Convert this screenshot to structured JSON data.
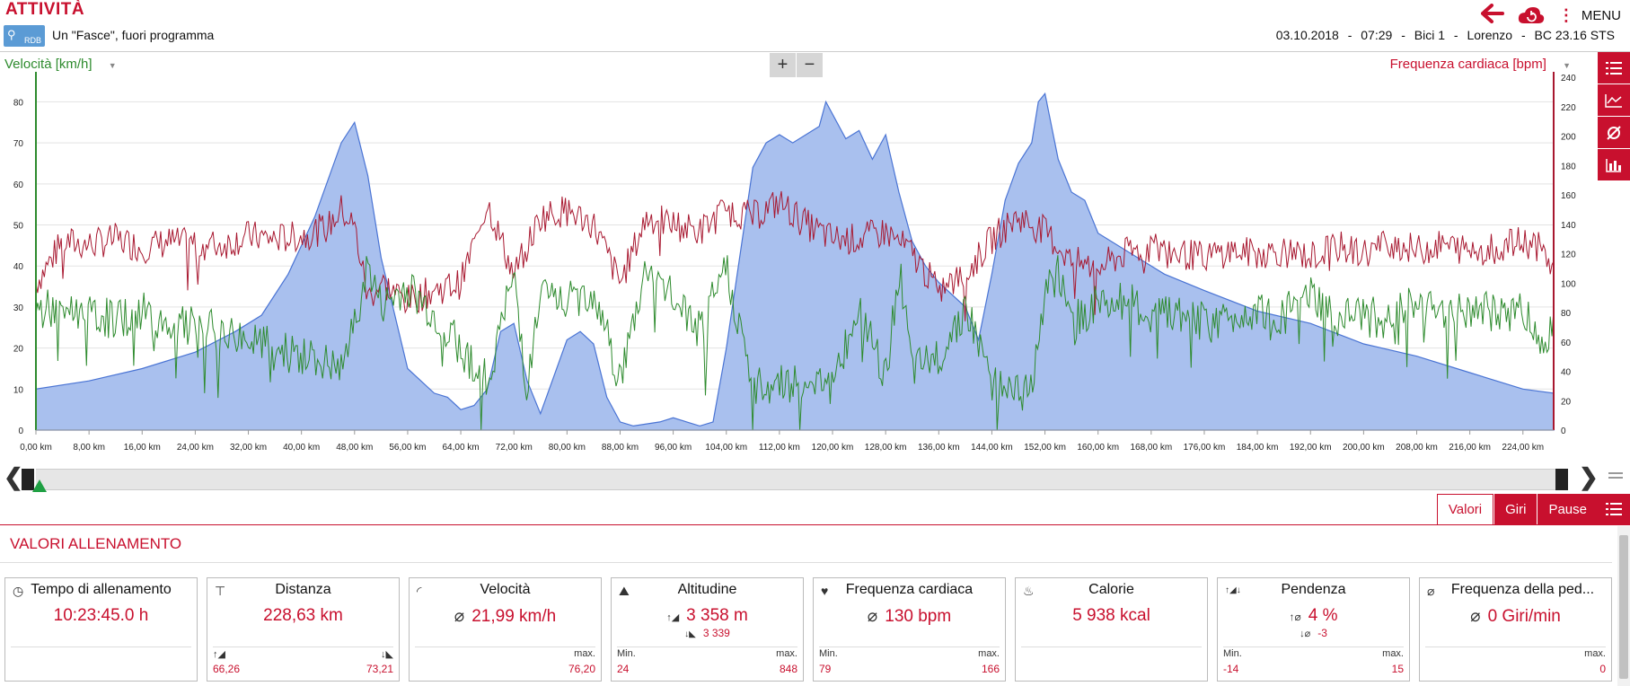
{
  "header": {
    "title": "ATTIVITÀ",
    "logo_text": "RDB",
    "activity_name": "Un \"Fasce\", fuori programma",
    "date": "03.10.2018",
    "time": "07:29",
    "bike": "Bici 1",
    "user": "Lorenzo",
    "device": "BC 23.16 STS",
    "sep": "-",
    "menu_label": "MENU"
  },
  "chart_header": {
    "left_axis_label": "Velocità [km/h]",
    "right_axis_label": "Frequenza cardiaca [bpm]",
    "zoom_in": "+",
    "zoom_out": "−"
  },
  "colors": {
    "accent": "#c8102e",
    "speed": "#2e8b2e",
    "heart_rate": "#a81830",
    "altitude_fill": "#a9c0ee",
    "altitude_line": "#4a74d4"
  },
  "chart_data": {
    "type": "area",
    "x_label_unit": "km",
    "x_ticks": [
      "0,00 km",
      "8,00 km",
      "16,00 km",
      "24,00 km",
      "32,00 km",
      "40,00 km",
      "48,00 km",
      "56,00 km",
      "64,00 km",
      "72,00 km",
      "80,00 km",
      "88,00 km",
      "96,00 km",
      "104,00 km",
      "112,00 km",
      "120,00 km",
      "128,00 km",
      "136,00 km",
      "144,00 km",
      "152,00 km",
      "160,00 km",
      "168,00 km",
      "176,00 km",
      "184,00 km",
      "192,00 km",
      "200,00 km",
      "208,00 km",
      "216,00 km",
      "224,00 km"
    ],
    "y_left_ticks": [
      "0",
      "10",
      "20",
      "30",
      "40",
      "50",
      "60",
      "70",
      "80"
    ],
    "y_right_ticks": [
      "0",
      "20",
      "40",
      "60",
      "80",
      "100",
      "120",
      "140",
      "160",
      "180",
      "200",
      "220",
      "240"
    ],
    "xlim": [
      0,
      228.63
    ],
    "ylim_left": [
      0,
      86
    ],
    "ylim_right": [
      0,
      240
    ],
    "grid": true,
    "series": [
      {
        "name": "Altitudine",
        "axis": "left",
        "type": "area",
        "x": [
          0,
          8,
          16,
          24,
          30,
          34,
          38,
          42,
          46,
          48,
          50,
          52,
          56,
          60,
          62,
          64,
          66,
          68,
          70,
          72,
          74,
          76,
          80,
          82,
          84,
          86,
          88,
          90,
          94,
          96,
          100,
          102,
          104,
          108,
          110,
          112,
          114,
          118,
          119,
          122,
          124,
          126,
          128,
          130,
          132,
          134,
          136,
          140,
          142,
          144,
          146,
          148,
          150,
          151,
          152,
          154,
          156,
          158,
          160,
          166,
          170,
          176,
          184,
          192,
          200,
          208,
          216,
          224,
          228.63
        ],
        "y": [
          10,
          12,
          15,
          19,
          24,
          28,
          38,
          52,
          70,
          75,
          62,
          42,
          15,
          9,
          8,
          5,
          6,
          10,
          24,
          26,
          12,
          4,
          22,
          24,
          21,
          8,
          2,
          1,
          2,
          3,
          1,
          2,
          20,
          64,
          70,
          72,
          70,
          74,
          80,
          71,
          73,
          66,
          72,
          58,
          46,
          40,
          36,
          30,
          22,
          38,
          56,
          65,
          70,
          80,
          82,
          66,
          58,
          56,
          48,
          42,
          38,
          34,
          29,
          26,
          21,
          18,
          14,
          10,
          9
        ]
      },
      {
        "name": "Velocità",
        "axis": "left",
        "type": "line",
        "x": [
          0,
          4,
          8,
          12,
          16,
          20,
          24,
          28,
          32,
          36,
          40,
          44,
          46,
          48,
          50,
          52,
          56,
          60,
          64,
          68,
          72,
          74,
          76,
          80,
          84,
          88,
          92,
          96,
          100,
          104,
          108,
          112,
          116,
          118,
          120,
          124,
          128,
          130,
          132,
          136,
          140,
          144,
          148,
          150,
          152,
          154,
          156,
          160,
          164,
          168,
          172,
          176,
          180,
          184,
          188,
          192,
          196,
          200,
          204,
          208,
          212,
          216,
          220,
          224,
          226,
          228.63
        ],
        "y": [
          29,
          30,
          28,
          27,
          29,
          26,
          25,
          24,
          22,
          20,
          18,
          16,
          14,
          26,
          40,
          30,
          35,
          28,
          20,
          12,
          38,
          10,
          33,
          31,
          34,
          12,
          40,
          32,
          24,
          40,
          10,
          12,
          11,
          14,
          10,
          30,
          12,
          40,
          14,
          18,
          30,
          12,
          10,
          11,
          33,
          38,
          26,
          31,
          32,
          27,
          29,
          26,
          27,
          30,
          28,
          33,
          27,
          28,
          27,
          31,
          28,
          30,
          28,
          30,
          22,
          25
        ]
      },
      {
        "name": "Frequenza cardiaca",
        "axis": "right",
        "type": "line",
        "x": [
          0,
          4,
          8,
          12,
          16,
          20,
          24,
          28,
          32,
          36,
          40,
          44,
          46,
          48,
          50,
          52,
          56,
          60,
          64,
          68,
          72,
          76,
          80,
          84,
          88,
          92,
          96,
          100,
          104,
          108,
          112,
          116,
          120,
          124,
          128,
          132,
          136,
          140,
          144,
          148,
          152,
          156,
          160,
          164,
          168,
          172,
          176,
          180,
          184,
          188,
          192,
          196,
          200,
          204,
          208,
          212,
          216,
          220,
          224,
          226,
          228.63
        ],
        "y": [
          100,
          128,
          126,
          130,
          124,
          128,
          126,
          126,
          132,
          130,
          132,
          138,
          150,
          138,
          90,
          100,
          88,
          95,
          100,
          155,
          105,
          145,
          150,
          140,
          100,
          145,
          140,
          135,
          150,
          145,
          155,
          140,
          130,
          130,
          135,
          120,
          95,
          105,
          130,
          145,
          135,
          115,
          110,
          120,
          125,
          120,
          118,
          122,
          120,
          122,
          118,
          125,
          120,
          128,
          122,
          126,
          122,
          124,
          128,
          126,
          110
        ]
      }
    ]
  },
  "navigator": {
    "left_arrow": "❮",
    "right_arrow": "❯"
  },
  "tabs": [
    "Valori",
    "Giri",
    "Pause"
  ],
  "section_title": "VALORI ALLENAMENTO",
  "cards": [
    {
      "title": "Tempo di allenamento",
      "icon": "clock-icon",
      "value": "10:23:45.0 h",
      "sub": "",
      "lbl_l": "",
      "lbl_r": "",
      "v_l": "",
      "v_r": ""
    },
    {
      "title": "Distanza",
      "icon": "signpost-icon",
      "value": "228,63 km",
      "sub": "",
      "lbl_l": "↑◢",
      "lbl_r": "↓◣",
      "v_l": "66,26",
      "v_r": "73,21"
    },
    {
      "title": "Velocità",
      "icon": "speedometer-icon",
      "value": "21,99 km/h",
      "sub": "",
      "lbl_l": "",
      "lbl_r": "max.",
      "v_l": "",
      "v_r": "76,20"
    },
    {
      "title": "Altitudine",
      "icon": "mountain-icon",
      "value": "3 358 m",
      "sub": "3 339",
      "lbl_l": "Min.",
      "lbl_r": "max.",
      "v_l": "24",
      "v_r": "848"
    },
    {
      "title": "Frequenza cardiaca",
      "icon": "heart-icon",
      "value": "130 bpm",
      "sub": "",
      "lbl_l": "Min.",
      "lbl_r": "max.",
      "v_l": "79",
      "v_r": "166"
    },
    {
      "title": "Calorie",
      "icon": "flame-icon",
      "value": "5 938 kcal",
      "sub": "",
      "lbl_l": "",
      "lbl_r": "",
      "v_l": "",
      "v_r": ""
    },
    {
      "title": "Pendenza",
      "icon": "slope-icon",
      "value": "4 %",
      "sub": "-3",
      "lbl_l": "Min.",
      "lbl_r": "max.",
      "v_l": "-14",
      "v_r": "15"
    },
    {
      "title": "Frequenza della ped...",
      "icon": "cadence-icon",
      "value": "0 Giri/min",
      "sub": "",
      "lbl_l": "",
      "lbl_r": "max.",
      "v_l": "",
      "v_r": "0"
    }
  ]
}
